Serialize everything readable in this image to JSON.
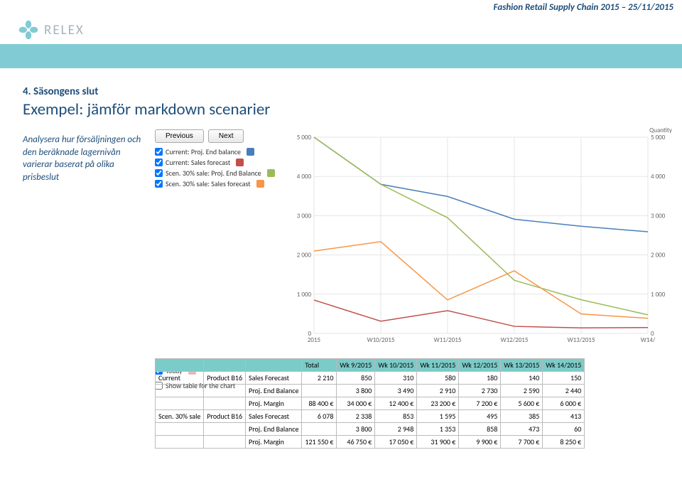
{
  "header": {
    "event": "Fashion Retail Supply Chain 2015 – 25/11/2015",
    "brand": "RELEX"
  },
  "section": {
    "number": "4. Säsongens slut",
    "title": "Exempel: jämför markdown scenarier",
    "description": "Analysera hur försäljningen och den beräknade lagernivån varierar baserat på olika prisbeslut"
  },
  "nav": {
    "prev": "Previous",
    "next": "Next"
  },
  "legend": [
    {
      "label": "Current: Proj. End balance",
      "color": "#4a7ebb",
      "checked": true
    },
    {
      "label": "Current: Sales forecast",
      "color": "#c0504d",
      "checked": true
    },
    {
      "label": "Scen. 30% sale: Proj. End Balance",
      "color": "#9bbb59",
      "checked": true
    },
    {
      "label": "Scen. 30% sale: Sales forecast",
      "color": "#f79646",
      "checked": true
    }
  ],
  "chart": {
    "ylabel": "Quantity",
    "ylim": [
      0,
      5000
    ],
    "ytick": 1000,
    "xlabels": [
      "2015",
      "W10/2015",
      "W11/2015",
      "W12/2015",
      "W13/2015",
      "W14/"
    ],
    "grid_color": "#e5e5e5",
    "series": [
      {
        "color": "#4a7ebb",
        "width": 1.5,
        "pts": [
          [
            0,
            5000
          ],
          [
            1,
            3800
          ],
          [
            2,
            3490
          ],
          [
            3,
            2910
          ],
          [
            4,
            2730
          ],
          [
            5,
            2590
          ]
        ]
      },
      {
        "color": "#c0504d",
        "width": 1.5,
        "pts": [
          [
            0,
            850
          ],
          [
            1,
            310
          ],
          [
            2,
            580
          ],
          [
            3,
            180
          ],
          [
            4,
            140
          ],
          [
            5,
            150
          ]
        ]
      },
      {
        "color": "#9bbb59",
        "width": 1.5,
        "pts": [
          [
            0,
            5000
          ],
          [
            1,
            3800
          ],
          [
            2,
            2948
          ],
          [
            3,
            1353
          ],
          [
            4,
            858
          ],
          [
            5,
            473
          ]
        ]
      },
      {
        "color": "#f79646",
        "width": 1.5,
        "pts": [
          [
            0,
            2100
          ],
          [
            1,
            2338
          ],
          [
            2,
            853
          ],
          [
            3,
            1595
          ],
          [
            4,
            495
          ],
          [
            5,
            385
          ]
        ]
      }
    ]
  },
  "controls": {
    "today": "Today",
    "today_color": "#e6b9b8",
    "show_table": "Show table for the chart"
  },
  "table": {
    "headers": [
      "",
      "",
      "",
      "Total",
      "Wk 9/2015",
      "Wk 10/2015",
      "Wk 11/2015",
      "Wk 12/2015",
      "Wk 13/2015",
      "Wk 14/2015"
    ],
    "rows": [
      [
        "Current",
        "Product B16",
        "Sales Forecast",
        "2 210",
        "850",
        "310",
        "580",
        "180",
        "140",
        "150"
      ],
      [
        "",
        "",
        "Proj. End Balance",
        "",
        "3 800",
        "3 490",
        "2 910",
        "2 730",
        "2 590",
        "2 440"
      ],
      [
        "",
        "",
        "Proj. Margin",
        "88 400 €",
        "34 000 €",
        "12 400 €",
        "23 200 €",
        "7 200 €",
        "5 600 €",
        "6 000 €"
      ],
      [
        "Scen. 30% sale",
        "Product B16",
        "Sales Forecast",
        "6 078",
        "2 338",
        "853",
        "1 595",
        "495",
        "385",
        "413"
      ],
      [
        "",
        "",
        "Proj. End Balance",
        "",
        "3 800",
        "2 948",
        "1 353",
        "858",
        "473",
        "60"
      ],
      [
        "",
        "",
        "Proj. Margin",
        "121 550 €",
        "46 750 €",
        "17 050 €",
        "31 900 €",
        "9 900 €",
        "7 700 €",
        "8 250 €"
      ]
    ]
  }
}
